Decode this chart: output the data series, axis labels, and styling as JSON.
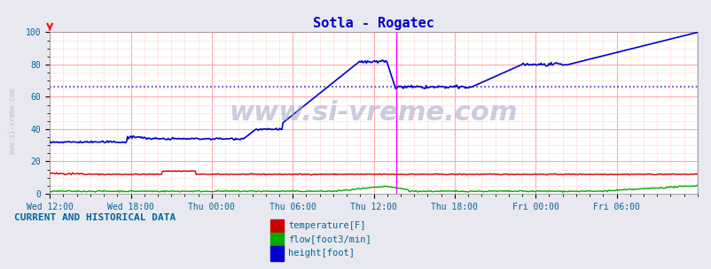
{
  "title": "Sotla - Rogatec",
  "title_color": "#0000cc",
  "background_color": "#e8e8f0",
  "plot_bg_color": "#ffffff",
  "grid_color_major": "#ffaaaa",
  "grid_color_minor": "#ffdddd",
  "ylim": [
    0,
    100
  ],
  "yticks": [
    0,
    20,
    40,
    60,
    80,
    100
  ],
  "xlabel_color": "#006699",
  "xtick_labels": [
    "Wed 12:00",
    "Wed 18:00",
    "Thu 00:00",
    "Thu 06:00",
    "Thu 12:00",
    "Thu 18:00",
    "Fri 00:00",
    "Fri 06:00"
  ],
  "watermark": "www.si-vreme.com",
  "watermark_color": "#aaaacc",
  "side_label": "www.si-vreme.com",
  "legend_label_temp": "temperature[F]",
  "legend_label_flow": "flow[foot3/min]",
  "legend_label_height": "height[foot]",
  "legend_text_color": "#006699",
  "bottom_label": "CURRENT AND HISTORICAL DATA",
  "bottom_label_color": "#006699",
  "temp_color": "#cc0000",
  "flow_color": "#00aa00",
  "height_color": "#0000cc",
  "dotted_line_color": "#0000aa",
  "dotted_line_y": 66,
  "magenta_vline_x": 0.535,
  "n_points": 576
}
